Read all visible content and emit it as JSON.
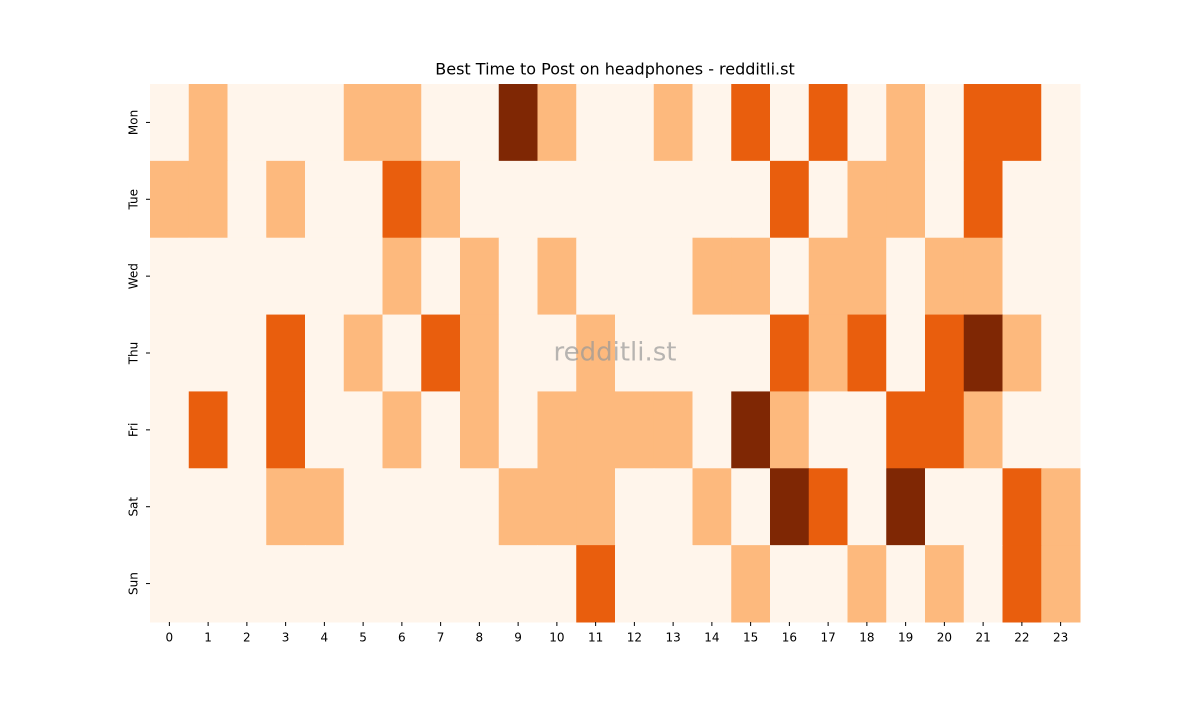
{
  "chart_data": {
    "type": "heatmap",
    "title": "Best Time to Post on headphones - redditli.st",
    "watermark": "redditli.st",
    "x": [
      "0",
      "1",
      "2",
      "3",
      "4",
      "5",
      "6",
      "7",
      "8",
      "9",
      "10",
      "11",
      "12",
      "13",
      "14",
      "15",
      "16",
      "17",
      "18",
      "19",
      "20",
      "21",
      "22",
      "23"
    ],
    "y": [
      "Mon",
      "Tue",
      "Wed",
      "Thu",
      "Fri",
      "Sat",
      "Sun"
    ],
    "values": [
      [
        0,
        1,
        0,
        0,
        0,
        1,
        1,
        0,
        0,
        3,
        1,
        0,
        0,
        1,
        0,
        2,
        0,
        2,
        0,
        1,
        0,
        2,
        2,
        0
      ],
      [
        1,
        1,
        0,
        1,
        0,
        0,
        2,
        1,
        0,
        0,
        0,
        0,
        0,
        0,
        0,
        0,
        2,
        0,
        1,
        1,
        0,
        2,
        0,
        0
      ],
      [
        0,
        0,
        0,
        0,
        0,
        0,
        1,
        0,
        1,
        0,
        1,
        0,
        0,
        0,
        1,
        1,
        0,
        1,
        1,
        0,
        1,
        1,
        0,
        0
      ],
      [
        0,
        0,
        0,
        2,
        0,
        1,
        0,
        2,
        1,
        0,
        0,
        1,
        0,
        0,
        0,
        0,
        2,
        1,
        2,
        0,
        2,
        3,
        1,
        0
      ],
      [
        0,
        2,
        0,
        2,
        0,
        0,
        1,
        0,
        1,
        0,
        1,
        1,
        1,
        1,
        0,
        3,
        1,
        0,
        0,
        2,
        2,
        1,
        0,
        0
      ],
      [
        0,
        0,
        0,
        1,
        1,
        0,
        0,
        0,
        0,
        1,
        1,
        1,
        0,
        0,
        1,
        0,
        3,
        2,
        0,
        3,
        0,
        0,
        2,
        1
      ],
      [
        0,
        0,
        0,
        0,
        0,
        0,
        0,
        0,
        0,
        0,
        0,
        2,
        0,
        0,
        0,
        1,
        0,
        0,
        1,
        0,
        1,
        0,
        2,
        1
      ]
    ],
    "colors": [
      "#fff5eb",
      "#fdb97d",
      "#e95e0d",
      "#7f2704"
    ]
  }
}
